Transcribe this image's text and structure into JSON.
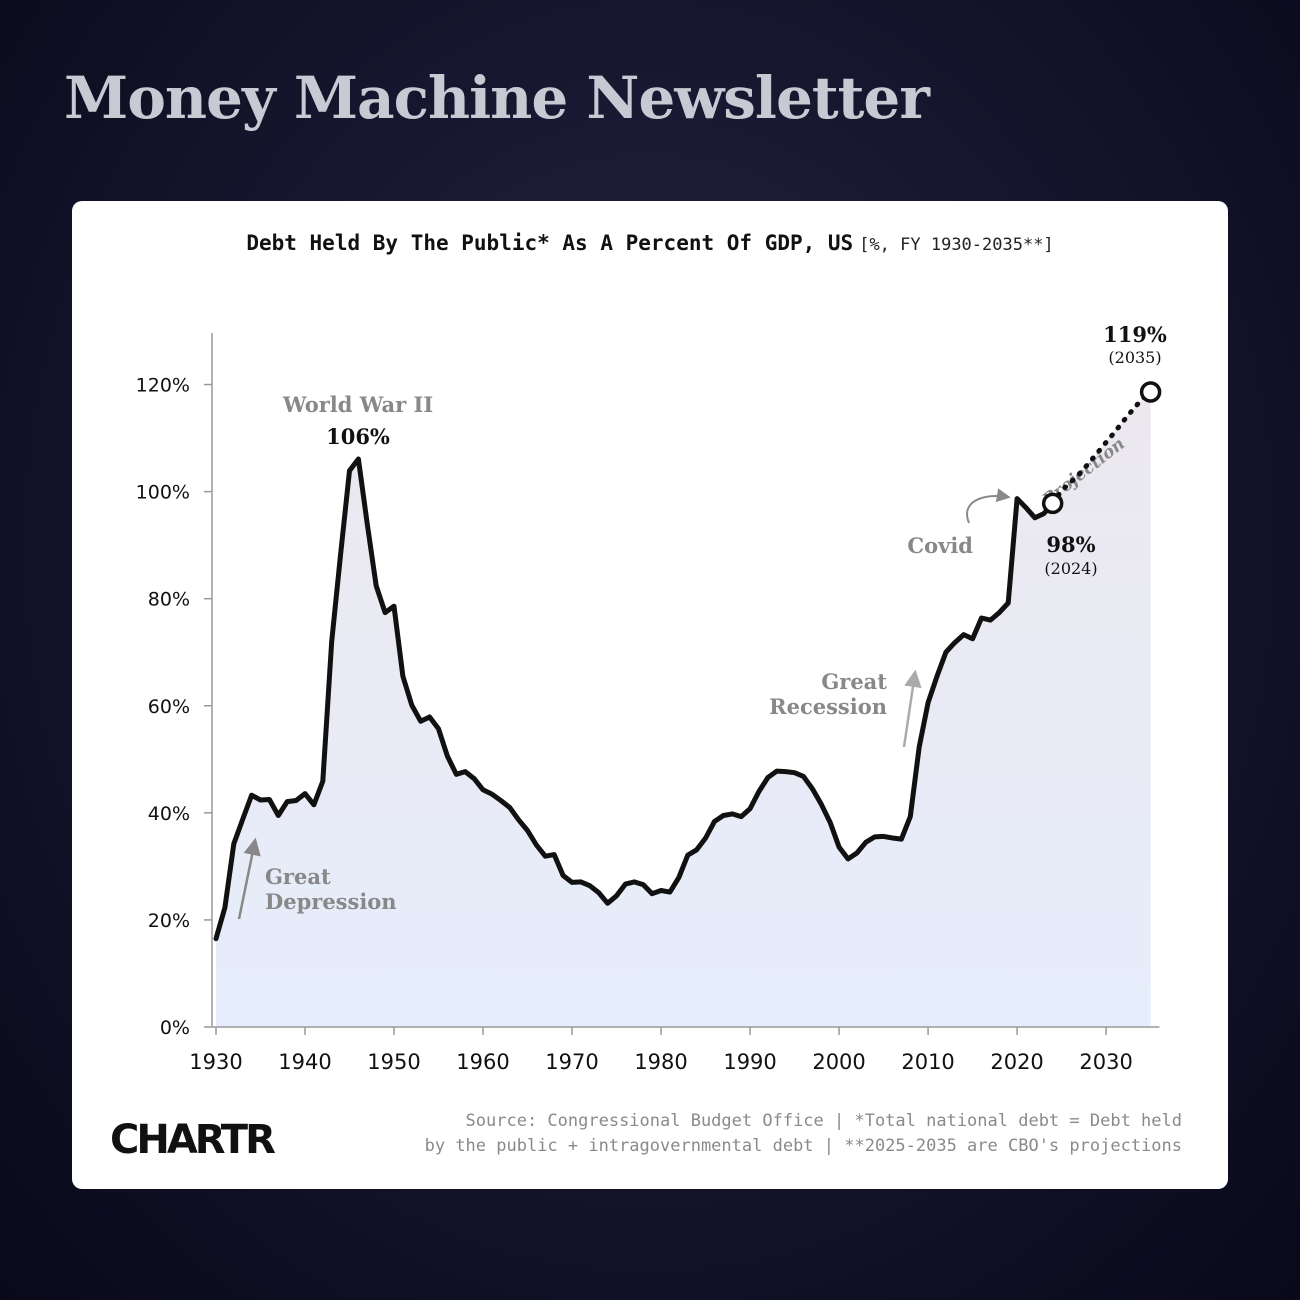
{
  "header": {
    "title": "Money Machine Newsletter"
  },
  "brand": {
    "logo_text": "CHARTR"
  },
  "source": {
    "line1": "Source: Congressional Budget Office | *Total national debt = Debt held",
    "line2": "by the public + intragovernmental debt | **2025-2035 are CBO's projections"
  },
  "colors": {
    "background": "#12122a",
    "card": "#ffffff",
    "line": "#111111",
    "annotation": "#888888",
    "area_top": "#ece8ee",
    "area_bottom": "#e6edfc"
  },
  "chart_data": {
    "type": "line",
    "title": "Debt Held By The Public* As A Percent Of GDP, US",
    "subtitle": "[%, FY 1930-2035**]",
    "xlabel": "",
    "ylabel": "",
    "xlim": [
      1930,
      2036
    ],
    "ylim": [
      0,
      130
    ],
    "x_ticks": [
      1930,
      1940,
      1950,
      1960,
      1970,
      1980,
      1990,
      2000,
      2010,
      2020,
      2030
    ],
    "y_ticks": [
      0,
      20,
      40,
      60,
      80,
      100,
      120
    ],
    "y_tick_labels": [
      "0%",
      "20%",
      "40%",
      "60%",
      "80%",
      "100%",
      "120%"
    ],
    "grid": false,
    "fill_area": true,
    "series": [
      {
        "style": "solid",
        "points": [
          [
            1930,
            16.5
          ],
          [
            1931,
            22.3
          ],
          [
            1932,
            34.2
          ],
          [
            1933,
            38.8
          ],
          [
            1934,
            43.3
          ],
          [
            1935,
            42.4
          ],
          [
            1936,
            42.5
          ],
          [
            1937,
            39.5
          ],
          [
            1938,
            42.1
          ],
          [
            1939,
            42.3
          ],
          [
            1940,
            43.6
          ],
          [
            1941,
            41.5
          ],
          [
            1942,
            45.9
          ],
          [
            1943,
            72.0
          ],
          [
            1944,
            88.3
          ],
          [
            1945,
            103.9
          ],
          [
            1946,
            106.1
          ],
          [
            1947,
            93.9
          ],
          [
            1948,
            82.4
          ],
          [
            1949,
            77.4
          ],
          [
            1950,
            78.6
          ],
          [
            1951,
            65.5
          ],
          [
            1952,
            60.1
          ],
          [
            1953,
            57.1
          ],
          [
            1954,
            57.9
          ],
          [
            1955,
            55.7
          ],
          [
            1956,
            50.6
          ],
          [
            1957,
            47.2
          ],
          [
            1958,
            47.7
          ],
          [
            1959,
            46.4
          ],
          [
            1960,
            44.3
          ],
          [
            1961,
            43.5
          ],
          [
            1962,
            42.3
          ],
          [
            1963,
            41.0
          ],
          [
            1964,
            38.7
          ],
          [
            1965,
            36.7
          ],
          [
            1966,
            34.0
          ],
          [
            1967,
            31.9
          ],
          [
            1968,
            32.2
          ],
          [
            1969,
            28.3
          ],
          [
            1970,
            27.0
          ],
          [
            1971,
            27.1
          ],
          [
            1972,
            26.4
          ],
          [
            1973,
            25.1
          ],
          [
            1974,
            23.1
          ],
          [
            1975,
            24.5
          ],
          [
            1976,
            26.7
          ],
          [
            1977,
            27.1
          ],
          [
            1978,
            26.6
          ],
          [
            1979,
            24.9
          ],
          [
            1980,
            25.5
          ],
          [
            1981,
            25.2
          ],
          [
            1982,
            27.9
          ],
          [
            1983,
            32.1
          ],
          [
            1984,
            33.1
          ],
          [
            1985,
            35.3
          ],
          [
            1986,
            38.4
          ],
          [
            1987,
            39.5
          ],
          [
            1988,
            39.8
          ],
          [
            1989,
            39.3
          ],
          [
            1990,
            40.8
          ],
          [
            1991,
            44.0
          ],
          [
            1992,
            46.6
          ],
          [
            1993,
            47.8
          ],
          [
            1994,
            47.7
          ],
          [
            1995,
            47.5
          ],
          [
            1996,
            46.8
          ],
          [
            1997,
            44.5
          ],
          [
            1998,
            41.6
          ],
          [
            1999,
            38.2
          ],
          [
            2000,
            33.6
          ],
          [
            2001,
            31.4
          ],
          [
            2002,
            32.5
          ],
          [
            2003,
            34.5
          ],
          [
            2004,
            35.5
          ],
          [
            2005,
            35.6
          ],
          [
            2006,
            35.3
          ],
          [
            2007,
            35.1
          ],
          [
            2008,
            39.3
          ],
          [
            2009,
            52.3
          ],
          [
            2010,
            60.6
          ],
          [
            2011,
            65.5
          ],
          [
            2012,
            70.0
          ],
          [
            2013,
            71.8
          ],
          [
            2014,
            73.3
          ],
          [
            2015,
            72.5
          ],
          [
            2016,
            76.4
          ],
          [
            2017,
            76.0
          ],
          [
            2018,
            77.4
          ],
          [
            2019,
            79.2
          ],
          [
            2020,
            98.7
          ],
          [
            2021,
            97.0
          ],
          [
            2022,
            95.1
          ],
          [
            2023,
            95.9
          ],
          [
            2024,
            97.8
          ]
        ]
      },
      {
        "style": "dotted",
        "points": [
          [
            2024,
            97.8
          ],
          [
            2025,
            100.2
          ],
          [
            2026,
            101.7
          ],
          [
            2027,
            103.3
          ],
          [
            2028,
            105.2
          ],
          [
            2029,
            107.2
          ],
          [
            2030,
            109.2
          ],
          [
            2031,
            111.2
          ],
          [
            2032,
            113.3
          ],
          [
            2033,
            115.3
          ],
          [
            2034,
            117.2
          ],
          [
            2035,
            118.6
          ]
        ]
      }
    ],
    "markers": [
      {
        "x": 2024,
        "y": 97.8,
        "label": "98%",
        "sublabel": "(2024)"
      },
      {
        "x": 2035,
        "y": 118.6,
        "label": "119%",
        "sublabel": "(2035)"
      }
    ],
    "annotations": {
      "ww2_title": "World War II",
      "ww2_value": "106%",
      "great_depression_line1": "Great",
      "great_depression_line2": "Depression",
      "great_recession_line1": "Great",
      "great_recession_line2": "Recession",
      "covid": "Covid",
      "projection": "Projection"
    }
  }
}
